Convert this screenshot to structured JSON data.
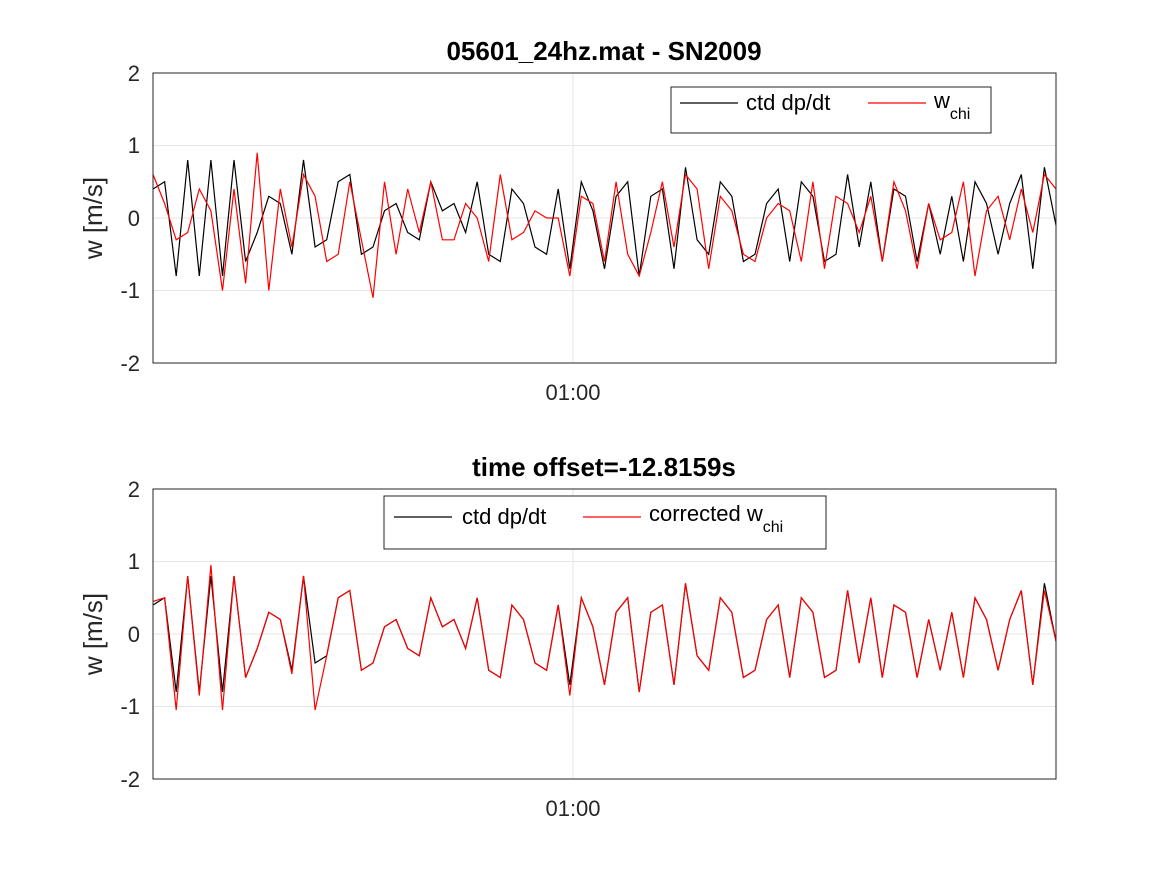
{
  "chart_data": [
    {
      "type": "line",
      "title": "05601_24hz.mat - SN2009",
      "ylabel": "w [m/s]",
      "xlabel": "",
      "ylim": [
        -2,
        2
      ],
      "yticks": [
        "2",
        "1",
        "0",
        "-1",
        "-2"
      ],
      "xticks": [
        "01:00"
      ],
      "grid": true,
      "legend_position": "top-right",
      "colors": {
        "ctd": "#000000",
        "chi": "#ff0000"
      },
      "legend": [
        {
          "label": "ctd dp/dt",
          "color": "#000000"
        },
        {
          "label_main": "w",
          "label_sub": "chi",
          "color": "#ff0000"
        }
      ],
      "series": [
        {
          "name": "ctd dp/dt",
          "color": "#000000",
          "values": [
            0.4,
            0.5,
            -0.8,
            0.8,
            -0.8,
            0.8,
            -0.8,
            0.8,
            -0.6,
            -0.2,
            0.3,
            0.2,
            -0.5,
            0.8,
            -0.4,
            -0.3,
            0.5,
            0.6,
            -0.5,
            -0.4,
            0.1,
            0.2,
            -0.2,
            -0.3,
            0.5,
            0.1,
            0.2,
            -0.2,
            0.5,
            -0.5,
            -0.6,
            0.4,
            0.2,
            -0.4,
            -0.5,
            0.4,
            -0.7,
            0.5,
            0.1,
            -0.7,
            0.3,
            0.5,
            -0.8,
            0.3,
            0.4,
            -0.7,
            0.7,
            -0.3,
            -0.5,
            0.5,
            0.3,
            -0.6,
            -0.5,
            0.2,
            0.4,
            -0.6,
            0.5,
            0.3,
            -0.6,
            -0.5,
            0.6,
            -0.4,
            0.5,
            -0.6,
            0.4,
            0.3,
            -0.6,
            0.2,
            -0.5,
            0.3,
            -0.6,
            0.5,
            0.2,
            -0.5,
            0.2,
            0.6,
            -0.7,
            0.7,
            -0.1
          ]
        },
        {
          "name": "w chi",
          "color": "#ff0000",
          "values": [
            0.6,
            0.2,
            -0.3,
            -0.2,
            0.4,
            0.1,
            -1.0,
            0.4,
            -0.9,
            0.9,
            -1.0,
            0.4,
            -0.4,
            0.6,
            0.3,
            -0.6,
            -0.5,
            0.5,
            -0.3,
            -1.1,
            0.5,
            -0.5,
            0.4,
            -0.2,
            0.5,
            -0.3,
            -0.3,
            0.2,
            0.0,
            -0.6,
            0.6,
            -0.3,
            -0.2,
            0.1,
            0.0,
            0.0,
            -0.8,
            0.3,
            0.2,
            -0.6,
            0.5,
            -0.5,
            -0.8,
            -0.2,
            0.5,
            -0.4,
            0.6,
            0.4,
            -0.7,
            0.3,
            0.1,
            -0.5,
            -0.6,
            0.0,
            0.2,
            0.1,
            -0.6,
            0.5,
            -0.7,
            0.3,
            0.2,
            -0.2,
            0.3,
            -0.6,
            0.5,
            0.1,
            -0.7,
            0.2,
            -0.3,
            -0.2,
            0.5,
            -0.8,
            0.1,
            0.3,
            -0.3,
            0.4,
            -0.2,
            0.6,
            0.4
          ]
        }
      ]
    },
    {
      "type": "line",
      "title": "time offset=-12.8159s",
      "ylabel": "w [m/s]",
      "xlabel": "",
      "ylim": [
        -2,
        2
      ],
      "yticks": [
        "2",
        "1",
        "0",
        "-1",
        "-2"
      ],
      "xticks": [
        "01:00"
      ],
      "grid": true,
      "legend_position": "top",
      "colors": {
        "ctd": "#000000",
        "chi": "#ff0000"
      },
      "legend": [
        {
          "label": "ctd dp/dt",
          "color": "#000000"
        },
        {
          "label_main": "corrected w",
          "label_sub": "chi",
          "color": "#ff0000"
        }
      ],
      "series": [
        {
          "name": "ctd dp/dt",
          "color": "#000000",
          "values": [
            0.4,
            0.5,
            -0.8,
            0.8,
            -0.8,
            0.8,
            -0.8,
            0.8,
            -0.6,
            -0.2,
            0.3,
            0.2,
            -0.5,
            0.8,
            -0.4,
            -0.3,
            0.5,
            0.6,
            -0.5,
            -0.4,
            0.1,
            0.2,
            -0.2,
            -0.3,
            0.5,
            0.1,
            0.2,
            -0.2,
            0.5,
            -0.5,
            -0.6,
            0.4,
            0.2,
            -0.4,
            -0.5,
            0.4,
            -0.7,
            0.5,
            0.1,
            -0.7,
            0.3,
            0.5,
            -0.8,
            0.3,
            0.4,
            -0.7,
            0.7,
            -0.3,
            -0.5,
            0.5,
            0.3,
            -0.6,
            -0.5,
            0.2,
            0.4,
            -0.6,
            0.5,
            0.3,
            -0.6,
            -0.5,
            0.6,
            -0.4,
            0.5,
            -0.6,
            0.4,
            0.3,
            -0.6,
            0.2,
            -0.5,
            0.3,
            -0.6,
            0.5,
            0.2,
            -0.5,
            0.2,
            0.6,
            -0.7,
            0.7,
            -0.1
          ]
        },
        {
          "name": "corrected w chi",
          "color": "#ff0000",
          "values": [
            0.45,
            0.5,
            -1.05,
            0.8,
            -0.85,
            0.95,
            -1.05,
            0.8,
            -0.6,
            -0.2,
            0.3,
            0.2,
            -0.55,
            0.8,
            -1.05,
            -0.3,
            0.5,
            0.6,
            -0.5,
            -0.4,
            0.1,
            0.2,
            -0.2,
            -0.3,
            0.5,
            0.1,
            0.2,
            -0.2,
            0.5,
            -0.5,
            -0.6,
            0.4,
            0.2,
            -0.4,
            -0.5,
            0.4,
            -0.85,
            0.5,
            0.1,
            -0.7,
            0.3,
            0.5,
            -0.8,
            0.3,
            0.4,
            -0.7,
            0.7,
            -0.3,
            -0.5,
            0.5,
            0.3,
            -0.6,
            -0.5,
            0.2,
            0.4,
            -0.6,
            0.5,
            0.3,
            -0.6,
            -0.5,
            0.6,
            -0.4,
            0.5,
            -0.6,
            0.4,
            0.3,
            -0.6,
            0.2,
            -0.5,
            0.3,
            -0.6,
            0.5,
            0.2,
            -0.5,
            0.2,
            0.6,
            -0.7,
            0.6,
            -0.1
          ]
        }
      ]
    }
  ]
}
